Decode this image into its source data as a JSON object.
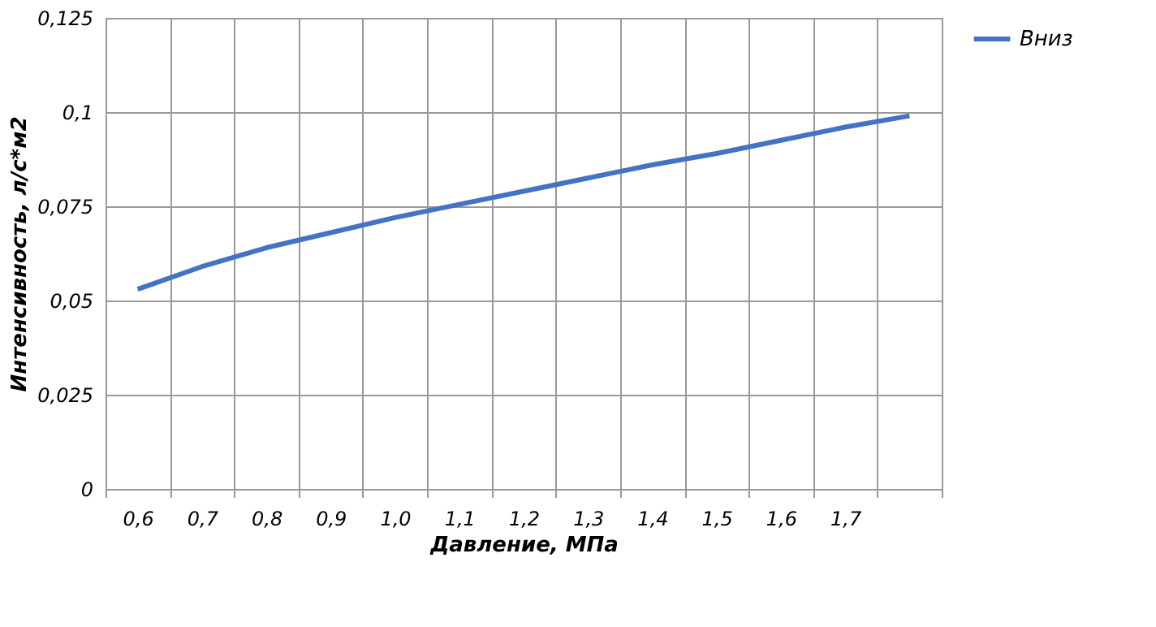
{
  "chart_data": {
    "type": "line",
    "xlabel": "Давление, МПа",
    "ylabel": "Интенсивность, л/с*м2",
    "categories": [
      "0,6",
      "0,7",
      "0,8",
      "0,9",
      "1,0",
      "1,1",
      "1,2",
      "1,3",
      "1,4",
      "1,5",
      "1,6",
      "1,7",
      null
    ],
    "series": [
      {
        "name": "Вниз",
        "color": "#4472c4",
        "values": [
          0.053,
          0.059,
          0.064,
          0.068,
          0.072,
          0.0755,
          0.079,
          0.0825,
          0.086,
          0.089,
          0.0925,
          0.096,
          0.099
        ]
      }
    ],
    "ylim": [
      0,
      0.125
    ],
    "yticks": [
      {
        "value": 0,
        "label": "0"
      },
      {
        "value": 0.025,
        "label": "0,025"
      },
      {
        "value": 0.05,
        "label": "0,05"
      },
      {
        "value": 0.075,
        "label": "0,075"
      },
      {
        "value": 0.1,
        "label": "0,1"
      },
      {
        "value": 0.125,
        "label": "0,125"
      }
    ],
    "grid": true,
    "legend": "right",
    "line_style": "solid",
    "marker": "none"
  }
}
